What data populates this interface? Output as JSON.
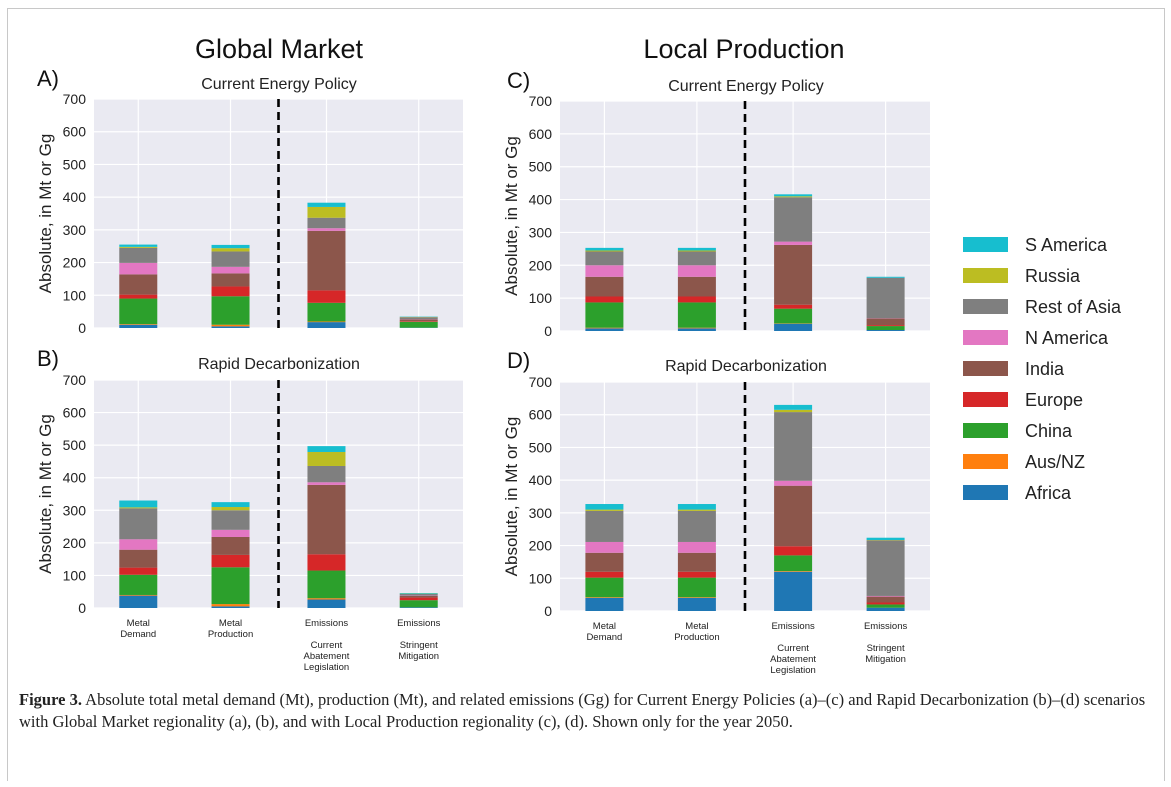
{
  "column_titles": [
    "Global Market",
    "Local Production"
  ],
  "categories": [
    "Metal Demand",
    "Metal Production",
    "Emissions Current Abatement Legislation",
    "Emissions Stringent Mitigation"
  ],
  "category_tick_labels": [
    [
      "Metal",
      "Demand"
    ],
    [
      "Metal",
      "Production"
    ],
    [
      "Emissions",
      "",
      "Current",
      "Abatement",
      "Legislation"
    ],
    [
      "Emissions",
      "",
      "Stringent",
      "Mitigation"
    ]
  ],
  "legend_order": [
    "S America",
    "Russia",
    "Rest of Asia",
    "N America",
    "India",
    "Europe",
    "China",
    "Aus/NZ",
    "Africa"
  ],
  "colors": {
    "Africa": "#1f77b4",
    "Aus/NZ": "#ff7f0e",
    "China": "#2ca02c",
    "Europe": "#d62728",
    "India": "#8c564b",
    "N America": "#e377c2",
    "Rest of Asia": "#7f7f7f",
    "Russia": "#bcbd22",
    "S America": "#17becf"
  },
  "chart_data": [
    {
      "panel": "A)",
      "type": "bar",
      "stacked": true,
      "title": "Current Energy Policy",
      "ylabel": "Absolute, in Mt or Gg",
      "ylim": [
        0,
        700
      ],
      "yticks": [
        0,
        100,
        200,
        300,
        400,
        500,
        600,
        700
      ],
      "categories": [
        "Metal Demand",
        "Metal Production",
        "Emissions Current Abatement Legislation",
        "Emissions Stringent Mitigation"
      ],
      "series": [
        {
          "name": "Africa",
          "values": [
            10,
            5,
            18,
            1
          ]
        },
        {
          "name": "Aus/NZ",
          "values": [
            2,
            5,
            2,
            0
          ]
        },
        {
          "name": "China",
          "values": [
            78,
            87,
            57,
            18
          ]
        },
        {
          "name": "Europe",
          "values": [
            12,
            30,
            38,
            2
          ]
        },
        {
          "name": "India",
          "values": [
            62,
            40,
            182,
            5
          ]
        },
        {
          "name": "N America",
          "values": [
            35,
            20,
            8,
            1
          ]
        },
        {
          "name": "Rest of Asia",
          "values": [
            46,
            47,
            32,
            6
          ]
        },
        {
          "name": "Russia",
          "values": [
            3,
            10,
            33,
            1
          ]
        },
        {
          "name": "S America",
          "values": [
            7,
            10,
            13,
            1
          ]
        }
      ]
    },
    {
      "panel": "B)",
      "type": "bar",
      "stacked": true,
      "title": "Rapid Decarbonization",
      "ylabel": "Absolute, in Mt or Gg",
      "ylim": [
        0,
        700
      ],
      "yticks": [
        0,
        100,
        200,
        300,
        400,
        500,
        600,
        700
      ],
      "categories": [
        "Metal Demand",
        "Metal Production",
        "Emissions Current Abatement Legislation",
        "Emissions Stringent Mitigation"
      ],
      "series": [
        {
          "name": "Africa",
          "values": [
            38,
            5,
            26,
            2
          ]
        },
        {
          "name": "Aus/NZ",
          "values": [
            2,
            7,
            4,
            0
          ]
        },
        {
          "name": "China",
          "values": [
            62,
            113,
            85,
            22
          ]
        },
        {
          "name": "Europe",
          "values": [
            22,
            38,
            50,
            8
          ]
        },
        {
          "name": "India",
          "values": [
            55,
            55,
            213,
            5
          ]
        },
        {
          "name": "N America",
          "values": [
            32,
            22,
            8,
            1
          ]
        },
        {
          "name": "Rest of Asia",
          "values": [
            95,
            60,
            50,
            5
          ]
        },
        {
          "name": "Russia",
          "values": [
            3,
            10,
            43,
            1
          ]
        },
        {
          "name": "S America",
          "values": [
            21,
            15,
            18,
            2
          ]
        }
      ]
    },
    {
      "panel": "C)",
      "type": "bar",
      "stacked": true,
      "title": "Current Energy Policy",
      "ylabel": "Absolute, in Mt or Gg",
      "ylim": [
        0,
        700
      ],
      "yticks": [
        0,
        100,
        200,
        300,
        400,
        500,
        600,
        700
      ],
      "categories": [
        "Metal Demand",
        "Metal Production",
        "Emissions Current Abatement Legislation",
        "Emissions Stringent Mitigation"
      ],
      "series": [
        {
          "name": "Africa",
          "values": [
            8,
            8,
            22,
            3
          ]
        },
        {
          "name": "Aus/NZ",
          "values": [
            2,
            2,
            1,
            0
          ]
        },
        {
          "name": "China",
          "values": [
            77,
            77,
            45,
            12
          ]
        },
        {
          "name": "Europe",
          "values": [
            18,
            18,
            12,
            3
          ]
        },
        {
          "name": "India",
          "values": [
            60,
            60,
            182,
            20
          ]
        },
        {
          "name": "N America",
          "values": [
            35,
            35,
            10,
            1
          ]
        },
        {
          "name": "Rest of Asia",
          "values": [
            42,
            42,
            135,
            123
          ]
        },
        {
          "name": "Russia",
          "values": [
            3,
            3,
            3,
            0
          ]
        },
        {
          "name": "S America",
          "values": [
            8,
            8,
            6,
            3
          ]
        }
      ]
    },
    {
      "panel": "D)",
      "type": "bar",
      "stacked": true,
      "title": "Rapid Decarbonization",
      "ylabel": "Absolute, in Mt or Gg",
      "ylim": [
        0,
        700
      ],
      "yticks": [
        0,
        100,
        200,
        300,
        400,
        500,
        600,
        700
      ],
      "categories": [
        "Metal Demand",
        "Metal Production",
        "Emissions Current Abatement Legislation",
        "Emissions Stringent Mitigation"
      ],
      "series": [
        {
          "name": "Africa",
          "values": [
            40,
            40,
            120,
            10
          ]
        },
        {
          "name": "Aus/NZ",
          "values": [
            2,
            2,
            2,
            0
          ]
        },
        {
          "name": "China",
          "values": [
            60,
            60,
            48,
            10
          ]
        },
        {
          "name": "Europe",
          "values": [
            18,
            18,
            28,
            6
          ]
        },
        {
          "name": "India",
          "values": [
            58,
            58,
            185,
            18
          ]
        },
        {
          "name": "N America",
          "values": [
            33,
            33,
            15,
            2
          ]
        },
        {
          "name": "Rest of Asia",
          "values": [
            95,
            95,
            210,
            170
          ]
        },
        {
          "name": "Russia",
          "values": [
            4,
            4,
            7,
            1
          ]
        },
        {
          "name": "S America",
          "values": [
            17,
            17,
            15,
            7
          ]
        }
      ]
    }
  ],
  "caption": {
    "label": "Figure 3.",
    "text": " Absolute total metal demand (Mt), production (Mt), and related emissions (Gg) for Current Energy Policies (a)–(c) and Rapid Decarbonization (b)–(d) scenarios with Global Market regionality (a), (b), and with Local Production regionality (c), (d). Shown only for the year 2050."
  }
}
